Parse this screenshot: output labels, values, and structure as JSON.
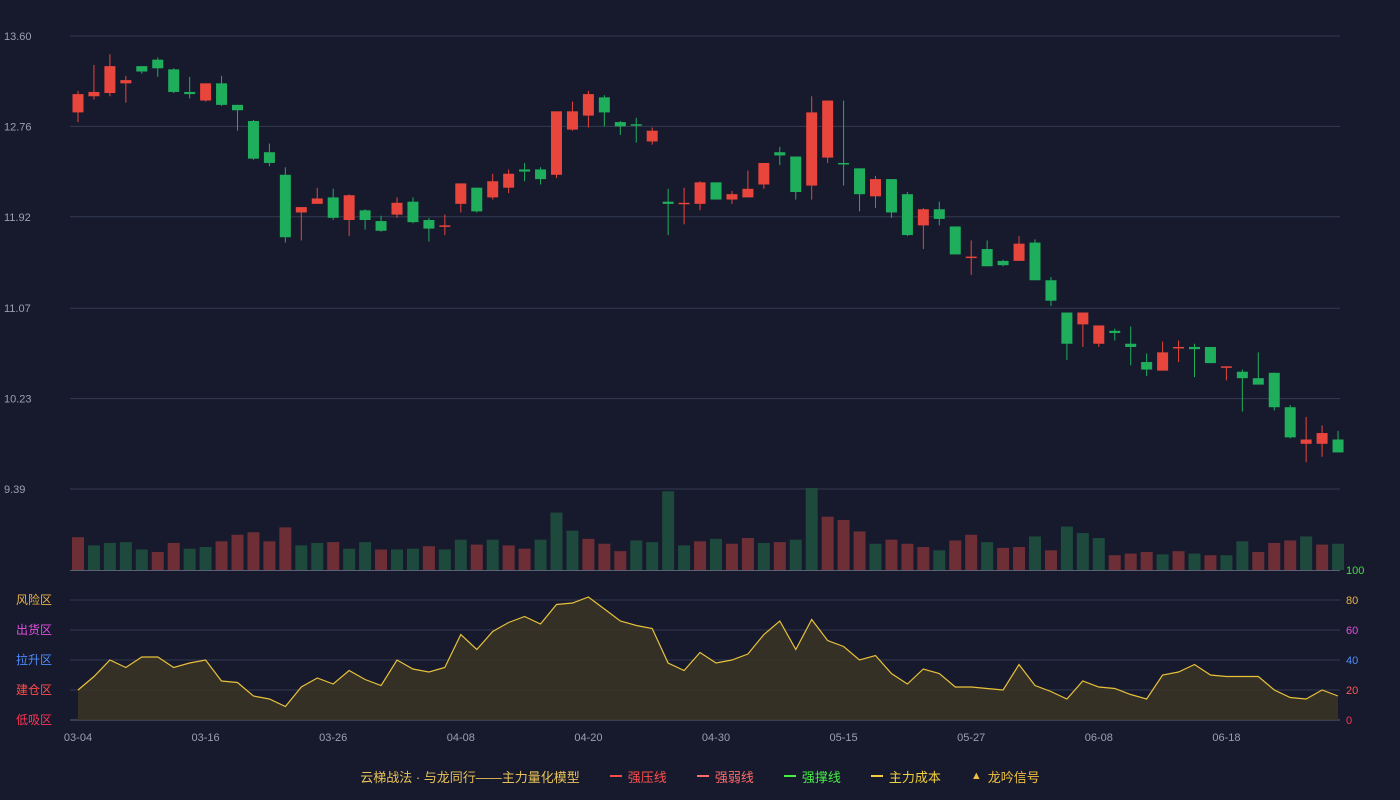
{
  "chart_data": {
    "type": "candlestick",
    "price_axis": {
      "ylim": [
        9.39,
        13.6
      ],
      "ticks": [
        "13.60",
        "12.76",
        "11.92",
        "11.07",
        "10.23",
        "9.39"
      ]
    },
    "x_labels": [
      {
        "index": 0,
        "label": "03-04"
      },
      {
        "index": 8,
        "label": "03-16"
      },
      {
        "index": 16,
        "label": "03-26"
      },
      {
        "index": 24,
        "label": "04-08"
      },
      {
        "index": 32,
        "label": "04-20"
      },
      {
        "index": 40,
        "label": "04-30"
      },
      {
        "index": 48,
        "label": "05-15"
      },
      {
        "index": 56,
        "label": "05-27"
      },
      {
        "index": 64,
        "label": "06-08"
      },
      {
        "index": 72,
        "label": "06-18"
      }
    ],
    "candles": [
      [
        12.89,
        13.06,
        13.09,
        12.8
      ],
      [
        13.04,
        13.08,
        13.33,
        13.01
      ],
      [
        13.07,
        13.32,
        13.43,
        13.04
      ],
      [
        13.16,
        13.19,
        13.23,
        12.98
      ],
      [
        13.32,
        13.27,
        13.31,
        13.25
      ],
      [
        13.38,
        13.3,
        13.4,
        13.22
      ],
      [
        13.29,
        13.08,
        13.3,
        13.07
      ],
      [
        13.08,
        13.06,
        13.22,
        13.02
      ],
      [
        13.0,
        13.16,
        13.16,
        12.99
      ],
      [
        13.16,
        12.96,
        13.23,
        12.95
      ],
      [
        12.96,
        12.91,
        12.96,
        12.72
      ],
      [
        12.81,
        12.46,
        12.82,
        12.45
      ],
      [
        12.52,
        12.42,
        12.6,
        12.39
      ],
      [
        12.31,
        11.73,
        12.38,
        11.68
      ],
      [
        11.96,
        12.01,
        12.0,
        11.7
      ],
      [
        12.04,
        12.09,
        12.19,
        12.04
      ],
      [
        12.1,
        11.91,
        12.18,
        11.89
      ],
      [
        11.89,
        12.12,
        12.13,
        11.74
      ],
      [
        11.98,
        11.89,
        11.99,
        11.8
      ],
      [
        11.88,
        11.79,
        11.93,
        11.78
      ],
      [
        11.94,
        12.05,
        12.1,
        11.91
      ],
      [
        12.06,
        11.87,
        12.1,
        11.86
      ],
      [
        11.89,
        11.81,
        11.91,
        11.69
      ],
      [
        11.84,
        11.84,
        11.94,
        11.75
      ],
      [
        12.04,
        12.23,
        12.23,
        11.96
      ],
      [
        12.19,
        11.97,
        12.19,
        11.96
      ],
      [
        12.1,
        12.25,
        12.32,
        12.08
      ],
      [
        12.19,
        12.32,
        12.36,
        12.14
      ],
      [
        12.36,
        12.34,
        12.42,
        12.25
      ],
      [
        12.36,
        12.27,
        12.38,
        12.22
      ],
      [
        12.31,
        12.9,
        12.9,
        12.28
      ],
      [
        12.73,
        12.9,
        12.99,
        12.72
      ],
      [
        12.86,
        13.06,
        13.09,
        12.75
      ],
      [
        13.03,
        12.89,
        13.05,
        12.76
      ],
      [
        12.8,
        12.76,
        12.81,
        12.68
      ],
      [
        12.78,
        12.77,
        12.84,
        12.61
      ],
      [
        12.62,
        12.72,
        12.75,
        12.59
      ],
      [
        12.06,
        12.04,
        12.18,
        11.75
      ],
      [
        12.05,
        12.05,
        12.19,
        11.85
      ],
      [
        12.04,
        12.24,
        12.25,
        11.98
      ],
      [
        12.24,
        12.08,
        12.24,
        12.08
      ],
      [
        12.08,
        12.13,
        12.16,
        12.04
      ],
      [
        12.1,
        12.18,
        12.35,
        12.1
      ],
      [
        12.22,
        12.42,
        12.42,
        12.18
      ],
      [
        12.52,
        12.49,
        12.57,
        12.4
      ],
      [
        12.48,
        12.15,
        12.48,
        12.08
      ],
      [
        12.21,
        12.89,
        13.04,
        12.08
      ],
      [
        12.47,
        13.0,
        13.0,
        12.42
      ],
      [
        12.42,
        12.41,
        13.0,
        12.21
      ],
      [
        12.37,
        12.13,
        12.37,
        11.97
      ],
      [
        12.11,
        12.27,
        12.3,
        12.0
      ],
      [
        12.27,
        11.96,
        12.27,
        11.91
      ],
      [
        12.13,
        11.75,
        12.15,
        11.74
      ],
      [
        11.84,
        11.99,
        12.0,
        11.62
      ],
      [
        11.99,
        11.9,
        12.06,
        11.84
      ],
      [
        11.83,
        11.57,
        11.83,
        11.57
      ],
      [
        11.55,
        11.55,
        11.7,
        11.38
      ],
      [
        11.62,
        11.46,
        11.7,
        11.46
      ],
      [
        11.51,
        11.47,
        11.52,
        11.46
      ],
      [
        11.51,
        11.67,
        11.74,
        11.51
      ],
      [
        11.68,
        11.33,
        11.71,
        11.33
      ],
      [
        11.33,
        11.14,
        11.36,
        11.09
      ],
      [
        11.03,
        10.74,
        11.03,
        10.59
      ],
      [
        10.92,
        11.03,
        11.03,
        10.71
      ],
      [
        10.74,
        10.91,
        10.91,
        10.71
      ],
      [
        10.86,
        10.84,
        10.88,
        10.77
      ],
      [
        10.74,
        10.71,
        10.9,
        10.54
      ],
      [
        10.57,
        10.5,
        10.65,
        10.44
      ],
      [
        10.49,
        10.66,
        10.76,
        10.54
      ],
      [
        10.71,
        10.71,
        10.77,
        10.57
      ],
      [
        10.71,
        10.69,
        10.74,
        10.43
      ],
      [
        10.71,
        10.56,
        10.71,
        10.56
      ],
      [
        10.52,
        10.53,
        10.53,
        10.4
      ],
      [
        10.48,
        10.42,
        10.5,
        10.11
      ],
      [
        10.42,
        10.36,
        10.66,
        10.37
      ],
      [
        10.47,
        10.15,
        10.47,
        10.12
      ],
      [
        10.15,
        9.87,
        10.17,
        9.86
      ],
      [
        9.81,
        9.85,
        10.06,
        9.64
      ],
      [
        9.81,
        9.91,
        9.98,
        9.69
      ],
      [
        9.85,
        9.73,
        9.93,
        9.73
      ]
    ],
    "volume": {
      "ylim": [
        0,
        100
      ],
      "values": [
        40,
        30,
        33,
        34,
        25,
        22,
        33,
        26,
        28,
        35,
        43,
        46,
        35,
        52,
        30,
        33,
        34,
        26,
        34,
        25,
        25,
        26,
        29,
        25,
        37,
        31,
        37,
        30,
        26,
        37,
        70,
        48,
        38,
        32,
        23,
        36,
        34,
        96,
        30,
        35,
        38,
        32,
        39,
        33,
        34,
        37,
        100,
        65,
        61,
        47,
        32,
        37,
        32,
        28,
        24,
        36,
        43,
        34,
        27,
        28,
        41,
        24,
        53,
        45,
        39,
        18,
        20,
        22,
        19,
        23,
        20,
        18,
        18,
        35,
        22,
        33,
        36,
        41,
        31,
        32
      ],
      "up": [
        true,
        false,
        false,
        false,
        false,
        true,
        true,
        false,
        false,
        true,
        true,
        true,
        true,
        true,
        false,
        false,
        true,
        false,
        false,
        true,
        false,
        false,
        true,
        false,
        false,
        true,
        false,
        true,
        true,
        false,
        false,
        false,
        true,
        true,
        true,
        false,
        false,
        false,
        false,
        true,
        false,
        true,
        true,
        false,
        true,
        false,
        false,
        true,
        true,
        true,
        false,
        true,
        true,
        true,
        false,
        true,
        true,
        false,
        true,
        true,
        false,
        true,
        false,
        false,
        false,
        true,
        true,
        true,
        false,
        true,
        false,
        true,
        false,
        false,
        true,
        true,
        true,
        false,
        true,
        false
      ]
    },
    "indicator": {
      "ylim": [
        0,
        100
      ],
      "ticks": [
        "100",
        "80",
        "60",
        "40",
        "20",
        "0"
      ],
      "tick_colors": [
        "#44dd44",
        "#e8b34a",
        "#e050e0",
        "#4d8cff",
        "#ff5555",
        "#ff3355"
      ],
      "zones": [
        {
          "label": "风险区",
          "color": "#e8b34a"
        },
        {
          "label": "出货区",
          "color": "#e050e0"
        },
        {
          "label": "拉升区",
          "color": "#4d8cff"
        },
        {
          "label": "建仓区",
          "color": "#ff4d4d"
        },
        {
          "label": "低吸区",
          "color": "#ff3355"
        }
      ],
      "values": [
        20,
        29,
        40,
        35,
        42,
        42,
        35,
        38,
        40,
        26,
        25,
        16,
        14,
        9,
        22,
        28,
        24,
        33,
        27,
        23,
        40,
        34,
        32,
        35,
        57,
        47,
        59,
        65,
        69,
        64,
        77,
        78,
        82,
        74,
        66,
        63,
        61,
        38,
        33,
        45,
        38,
        40,
        44,
        57,
        66,
        47,
        67,
        53,
        49,
        40,
        43,
        31,
        24,
        34,
        31,
        22,
        22,
        21,
        20,
        37,
        23,
        19,
        14,
        26,
        22,
        21,
        17,
        14,
        30,
        32,
        37,
        30,
        29,
        29,
        29,
        20,
        15,
        14,
        20,
        16
      ]
    },
    "colors": {
      "up": "#e8453c",
      "down": "#1fae5c",
      "up_volume": "#6e2e36",
      "down_volume": "#1d4a3d",
      "indicator_line": "#e8c13a"
    }
  },
  "legend": {
    "title": "云梯战法 · 与龙同行——主力量化模型",
    "items": [
      {
        "label": "强压线",
        "color": "#ff4d4d",
        "style": "solid"
      },
      {
        "label": "强弱线",
        "color": "#ff6b6b",
        "style": "dashed"
      },
      {
        "label": "强撑线",
        "color": "#44ee44",
        "style": "solid"
      },
      {
        "label": "主力成本",
        "color": "#f0d040",
        "style": "dashed"
      },
      {
        "label": "龙吟信号",
        "color": "#f0c040",
        "style": "triangle",
        "icon": "triangle-up-icon"
      }
    ]
  }
}
